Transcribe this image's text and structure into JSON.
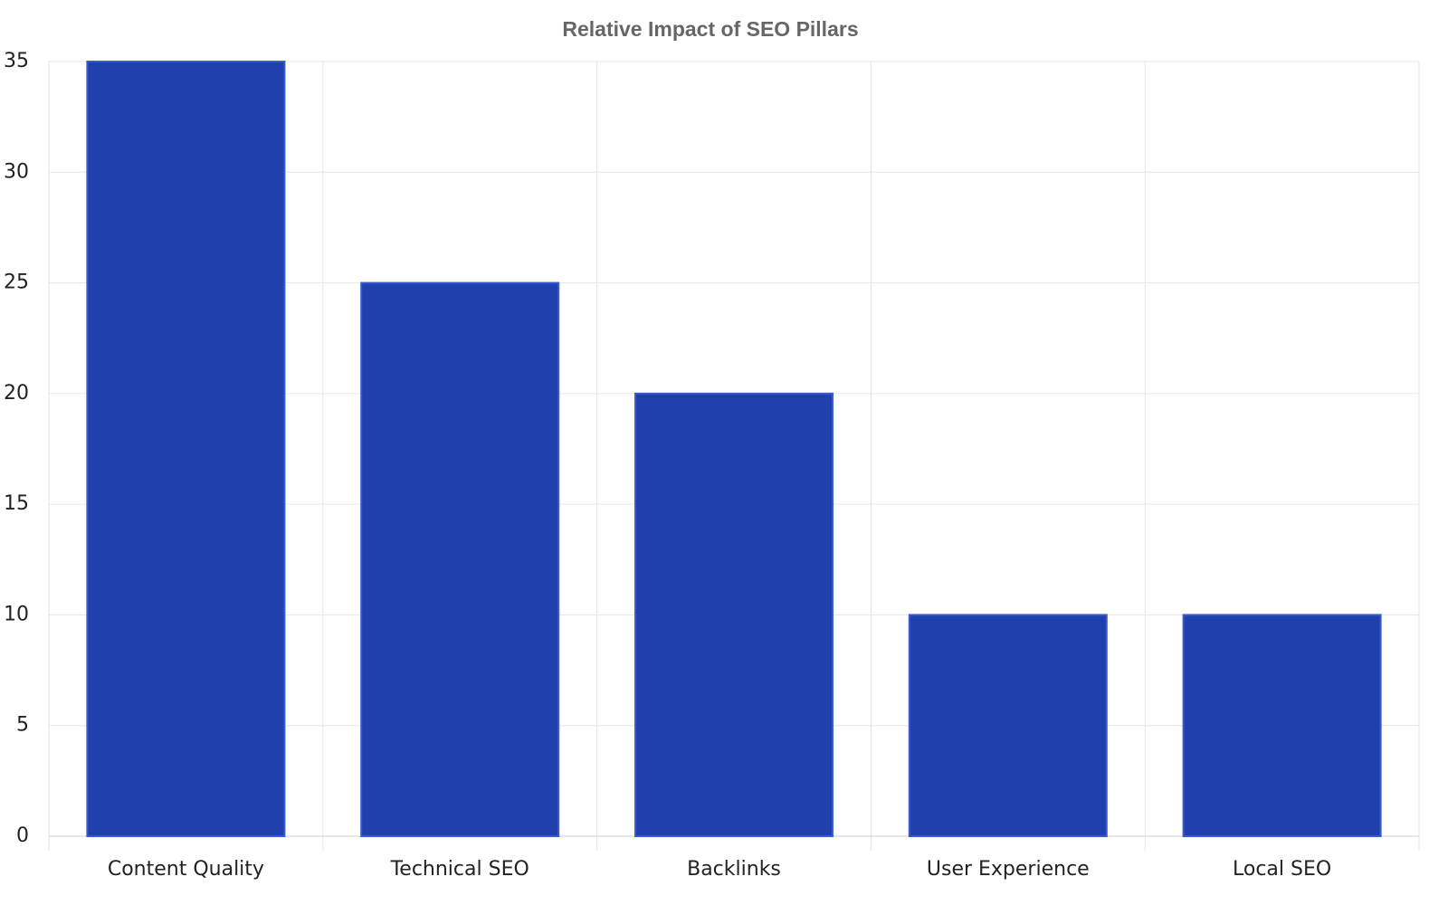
{
  "chart_data": {
    "type": "bar",
    "title": "Relative Impact of SEO Pillars",
    "categories": [
      "Content Quality",
      "Technical SEO",
      "Backlinks",
      "User Experience",
      "Local SEO"
    ],
    "values": [
      35,
      25,
      20,
      10,
      10
    ],
    "color": "#2041ad",
    "ylim": [
      0,
      35
    ],
    "yticks": [
      0,
      5,
      10,
      15,
      20,
      25,
      30,
      35
    ],
    "grid": true
  }
}
